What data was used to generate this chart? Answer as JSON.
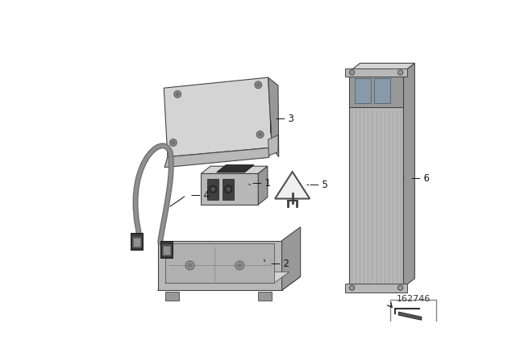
{
  "bg": "#ffffff",
  "border": "#cccccc",
  "fw": 6.4,
  "fh": 4.48,
  "dpi": 100,
  "part_number": "162746",
  "gray1": "#d4d4d4",
  "gray2": "#b8b8b8",
  "gray3": "#989898",
  "gray4": "#787878",
  "gray5": "#585858",
  "dark": "#383838",
  "lc": "#444444",
  "label_fs": 8.5
}
